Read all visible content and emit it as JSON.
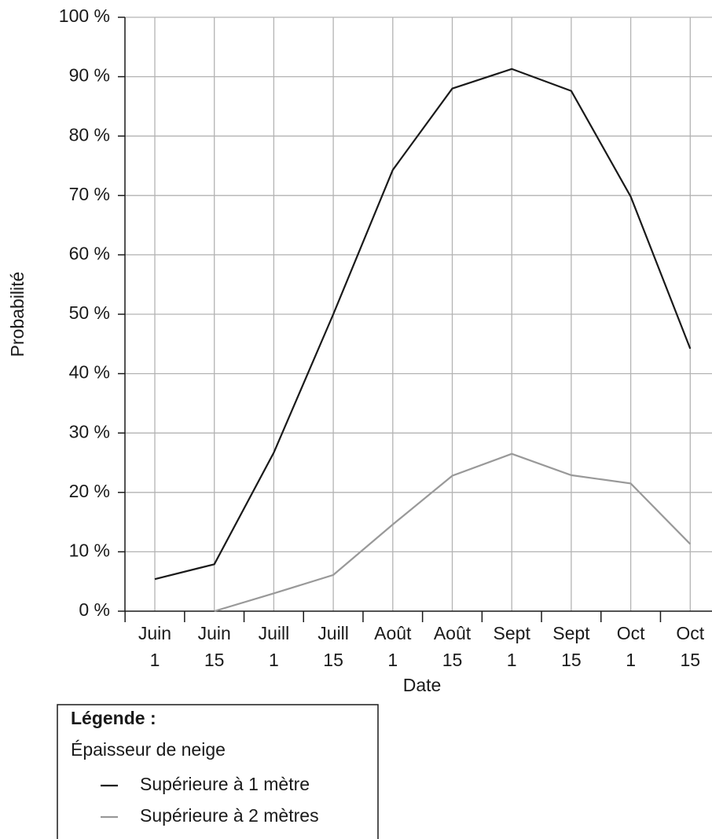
{
  "chart_data": {
    "type": "line",
    "x_label": "Date",
    "y_label": "Probabilité",
    "categories": [
      [
        "Juin",
        "1"
      ],
      [
        "Juin",
        "15"
      ],
      [
        "Juill",
        "1"
      ],
      [
        "Juill",
        "15"
      ],
      [
        "Août",
        "1"
      ],
      [
        "Août",
        "15"
      ],
      [
        "Sept",
        "1"
      ],
      [
        "Sept",
        "15"
      ],
      [
        "Oct",
        "1"
      ],
      [
        "Oct",
        "15"
      ]
    ],
    "series": [
      {
        "name": "Supérieure à 1 mètre",
        "color": "#1a1a1a",
        "values": [
          5.4,
          7.9,
          26.7,
          50,
          74.3,
          88,
          91.3,
          87.6,
          69.8,
          44.2
        ]
      },
      {
        "name": "Supérieure à 2 mètres",
        "color": "#999999",
        "values": [
          null,
          0,
          3,
          6.1,
          14.6,
          22.8,
          26.5,
          22.9,
          21.5,
          11.3
        ]
      }
    ],
    "ylim": [
      0,
      100
    ],
    "yticks": [
      {
        "value": 0,
        "label": "0 %"
      },
      {
        "value": 10,
        "label": "10 %"
      },
      {
        "value": 20,
        "label": "20 %"
      },
      {
        "value": 30,
        "label": "30 %"
      },
      {
        "value": 40,
        "label": "40 %"
      },
      {
        "value": 50,
        "label": "50 %"
      },
      {
        "value": 60,
        "label": "60 %"
      },
      {
        "value": 70,
        "label": "70 %"
      },
      {
        "value": 80,
        "label": "80 %"
      },
      {
        "value": 90,
        "label": "90 %"
      },
      {
        "value": 100,
        "label": "100 %"
      }
    ],
    "grid": true,
    "legend": {
      "title": "Légende :",
      "subtitle": "Épaisseur de neige",
      "position": "bottom-left"
    }
  }
}
